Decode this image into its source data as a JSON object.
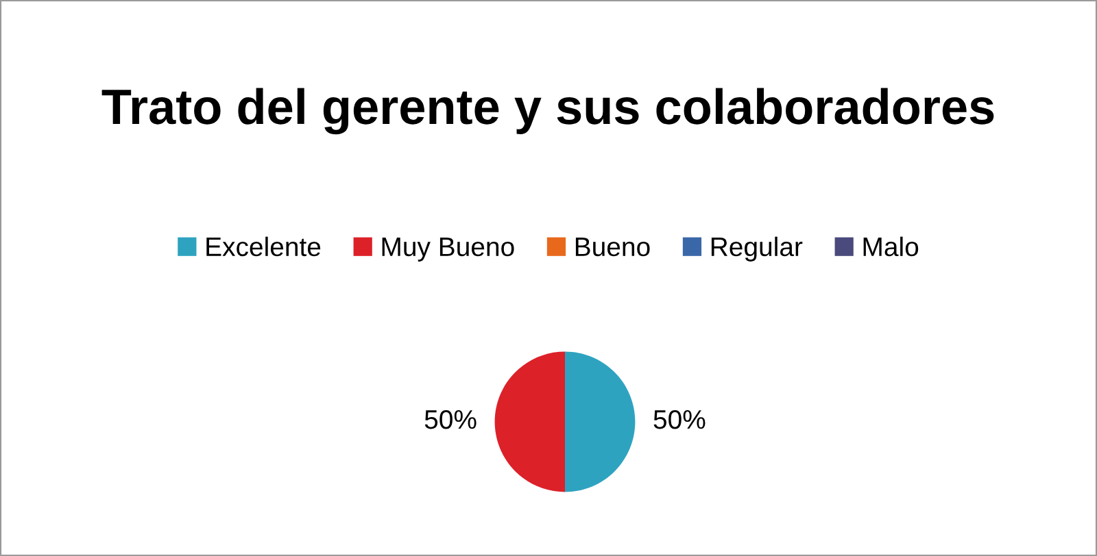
{
  "chart_data": {
    "type": "pie",
    "title": "Trato del gerente y sus colaboradores",
    "categories": [
      "Excelente",
      "Muy Bueno",
      "Bueno",
      "Regular",
      "Malo"
    ],
    "values": [
      50,
      50,
      0,
      0,
      0
    ],
    "colors": [
      "#2ea3c0",
      "#dc2129",
      "#e8681c",
      "#3a67a8",
      "#4a4a7c"
    ],
    "value_labels": [
      "50%",
      "50%",
      null,
      null,
      null
    ],
    "legend": "top"
  }
}
